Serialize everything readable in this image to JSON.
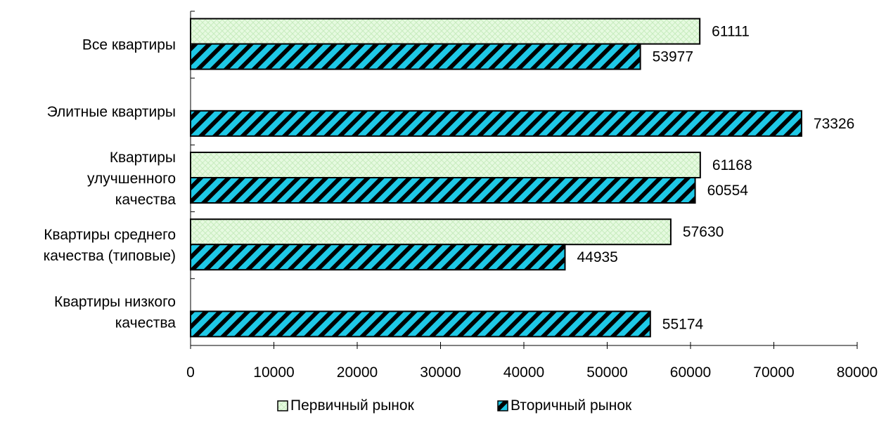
{
  "chart_data": {
    "type": "bar",
    "orientation": "horizontal",
    "title": "",
    "xlabel": "",
    "ylabel": "",
    "categories": [
      [
        "Все квартиры"
      ],
      [
        "Элитные квартиры"
      ],
      [
        "Квартиры",
        "улучшенного",
        "качества"
      ],
      [
        "Квартиры среднего",
        "качества (типовые)"
      ],
      [
        "Квартиры низкого",
        "качества"
      ]
    ],
    "series": [
      {
        "name": "Первичный рынок",
        "color": "#e6fae0",
        "pattern": "crosshatch-light",
        "values": [
          61111,
          null,
          61168,
          57630,
          null
        ]
      },
      {
        "name": "Вторичный рынок",
        "color": "#1ec8e6",
        "pattern": "diagonal-stripes-dark",
        "values": [
          53977,
          73326,
          60554,
          44935,
          55174
        ]
      }
    ],
    "xlim": [
      0,
      80000
    ],
    "xticks": [
      0,
      10000,
      20000,
      30000,
      40000,
      50000,
      60000,
      70000,
      80000
    ],
    "grid": false,
    "legend_position": "bottom"
  }
}
